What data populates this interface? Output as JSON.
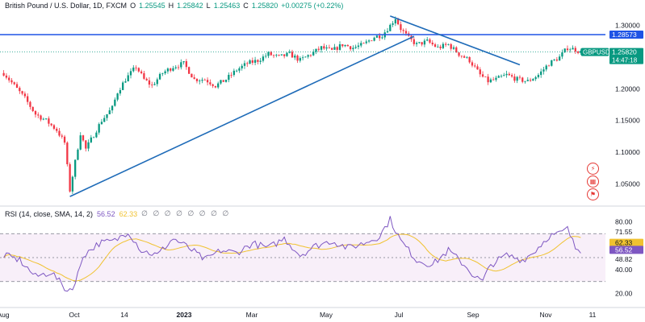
{
  "header": {
    "symbol_title": "British Pound / U.S. Dollar, 1D, FXCM",
    "open_label": "O",
    "open": "1.25545",
    "high_label": "H",
    "high": "1.25842",
    "low_label": "L",
    "low": "1.25463",
    "close_label": "C",
    "close": "1.25820",
    "change": "+0.00275 (+0.22%)"
  },
  "price_scale": {
    "ticks": [
      "1.30000",
      "1.25000",
      "1.20000",
      "1.15000",
      "1.10000",
      "1.05000"
    ],
    "hline_label": "1.28573",
    "symbol_badge": "GBPUSD",
    "last_price": "1.25820",
    "countdown": "14:47:18"
  },
  "rsi": {
    "title": "RSI (14, close, SMA, 14, 2)",
    "value_rsi": "56.52",
    "value_ma": "62.33",
    "slot_glyphs": "∅ ∅ ∅ ∅ ∅ ∅ ∅ ∅",
    "ticks": [
      "80.00",
      "71.55",
      "48.82",
      "40.00",
      "20.00"
    ],
    "rsi_label": "56.52",
    "ma_label": "62.33"
  },
  "time_axis": {
    "labels": [
      "Aug",
      "Oct",
      "14",
      "2023",
      "Mar",
      "May",
      "Jul",
      "Sep",
      "Nov",
      "11"
    ]
  },
  "icons": [
    "lightning-icon",
    "calendar-icon",
    "flag-icon"
  ],
  "colors": {
    "up": "#089981",
    "down": "#f23645",
    "trendline": "#2962ff",
    "rsi_line": "#7e57c2",
    "rsi_ma": "#f0c230",
    "rsi_band": "#f3e5f5"
  },
  "chart_data": {
    "type": "candlestick",
    "price_range": [
      1.02,
      1.32
    ],
    "anchors": [
      [
        0,
        1.225
      ],
      [
        4,
        1.205
      ],
      [
        8,
        1.185
      ],
      [
        12,
        1.16
      ],
      [
        16,
        1.15
      ],
      [
        20,
        1.135
      ],
      [
        23,
        1.115
      ],
      [
        25,
        1.04
      ],
      [
        27,
        1.085
      ],
      [
        29,
        1.13
      ],
      [
        31,
        1.105
      ],
      [
        33,
        1.12
      ],
      [
        35,
        1.135
      ],
      [
        37,
        1.15
      ],
      [
        39,
        1.16
      ],
      [
        41,
        1.17
      ],
      [
        43,
        1.195
      ],
      [
        46,
        1.215
      ],
      [
        50,
        1.235
      ],
      [
        53,
        1.215
      ],
      [
        56,
        1.205
      ],
      [
        60,
        1.225
      ],
      [
        64,
        1.235
      ],
      [
        68,
        1.24
      ],
      [
        72,
        1.215
      ],
      [
        76,
        1.215
      ],
      [
        80,
        1.205
      ],
      [
        84,
        1.215
      ],
      [
        88,
        1.23
      ],
      [
        92,
        1.24
      ],
      [
        96,
        1.245
      ],
      [
        100,
        1.255
      ],
      [
        104,
        1.25
      ],
      [
        108,
        1.255
      ],
      [
        112,
        1.245
      ],
      [
        116,
        1.255
      ],
      [
        120,
        1.265
      ],
      [
        124,
        1.26
      ],
      [
        128,
        1.27
      ],
      [
        132,
        1.265
      ],
      [
        136,
        1.27
      ],
      [
        140,
        1.282
      ],
      [
        143,
        1.285
      ],
      [
        146,
        1.3
      ],
      [
        148,
        1.312
      ],
      [
        150,
        1.295
      ],
      [
        153,
        1.28
      ],
      [
        156,
        1.27
      ],
      [
        160,
        1.275
      ],
      [
        164,
        1.265
      ],
      [
        168,
        1.27
      ],
      [
        172,
        1.255
      ],
      [
        176,
        1.245
      ],
      [
        180,
        1.222
      ],
      [
        183,
        1.212
      ],
      [
        186,
        1.215
      ],
      [
        190,
        1.222
      ],
      [
        194,
        1.215
      ],
      [
        198,
        1.212
      ],
      [
        202,
        1.222
      ],
      [
        206,
        1.24
      ],
      [
        210,
        1.25
      ],
      [
        213,
        1.265
      ],
      [
        216,
        1.262
      ],
      [
        218,
        1.258
      ]
    ],
    "rsi_anchors": [
      [
        0,
        52
      ],
      [
        6,
        48
      ],
      [
        12,
        34
      ],
      [
        18,
        38
      ],
      [
        24,
        22
      ],
      [
        27,
        28
      ],
      [
        30,
        52
      ],
      [
        36,
        62
      ],
      [
        42,
        64
      ],
      [
        47,
        72
      ],
      [
        52,
        56
      ],
      [
        58,
        52
      ],
      [
        64,
        66
      ],
      [
        70,
        58
      ],
      [
        76,
        48
      ],
      [
        82,
        56
      ],
      [
        88,
        54
      ],
      [
        94,
        62
      ],
      [
        100,
        58
      ],
      [
        106,
        66
      ],
      [
        112,
        52
      ],
      [
        118,
        60
      ],
      [
        124,
        64
      ],
      [
        130,
        58
      ],
      [
        136,
        62
      ],
      [
        142,
        68
      ],
      [
        146,
        82
      ],
      [
        150,
        64
      ],
      [
        156,
        48
      ],
      [
        162,
        44
      ],
      [
        168,
        56
      ],
      [
        174,
        44
      ],
      [
        178,
        34
      ],
      [
        181,
        30
      ],
      [
        184,
        44
      ],
      [
        190,
        52
      ],
      [
        196,
        48
      ],
      [
        200,
        54
      ],
      [
        206,
        68
      ],
      [
        210,
        70
      ],
      [
        213,
        74
      ],
      [
        216,
        58
      ],
      [
        218,
        56.52
      ]
    ],
    "rsi_range": [
      15,
      85
    ],
    "rsi_levels": [
      70,
      50,
      30
    ],
    "hline": 1.28573,
    "trendlines": [
      {
        "name": "support",
        "from": [
          25,
          1.03
        ],
        "to": [
          155,
          1.283
        ]
      },
      {
        "name": "resistance",
        "from": [
          146,
          1.315
        ],
        "to": [
          195,
          1.238
        ]
      }
    ]
  }
}
